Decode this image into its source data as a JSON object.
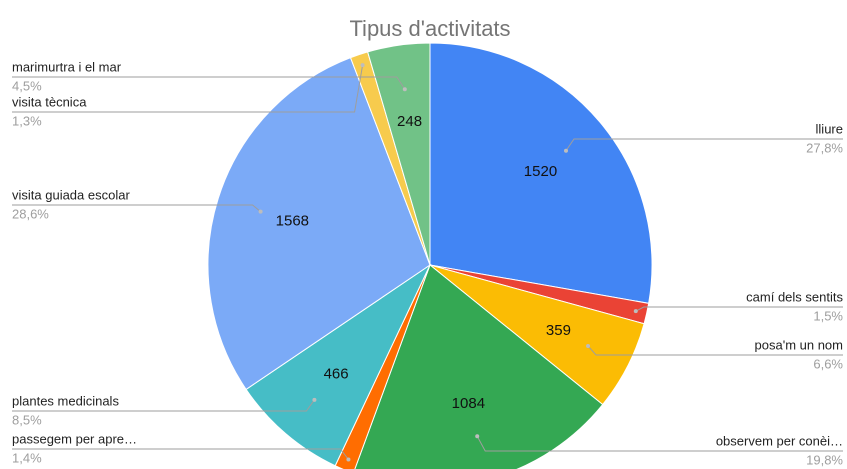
{
  "chart_data": {
    "type": "pie",
    "title": "Tipus d'activitats",
    "categories": [
      "lliure",
      "camí dels sentits",
      "posa'm un nom",
      "observem per conèi…",
      "passegem per apre…",
      "plantes medicinals",
      "visita guiada escolar",
      "visita tècnica",
      "marimurtra i el mar"
    ],
    "values": [
      1520,
      82,
      359,
      1084,
      77,
      466,
      1568,
      71,
      248
    ],
    "percent_labels": [
      "27,8%",
      "1,5%",
      "6,6%",
      "19,8%",
      "1,4%",
      "8,5%",
      "28,6%",
      "1,3%",
      "4,5%"
    ],
    "colors": [
      "#4285f4",
      "#ea4335",
      "#fbbc04",
      "#34a853",
      "#ff6d01",
      "#46bdc6",
      "#7baaf7",
      "#f7cb4d",
      "#71c287"
    ]
  }
}
